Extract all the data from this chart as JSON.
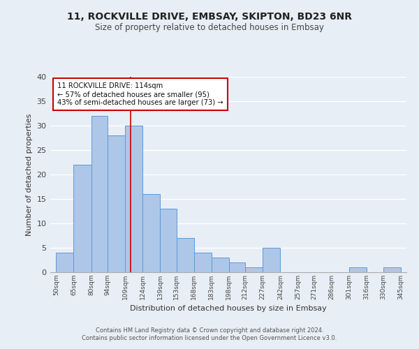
{
  "title": "11, ROCKVILLE DRIVE, EMBSAY, SKIPTON, BD23 6NR",
  "subtitle": "Size of property relative to detached houses in Embsay",
  "xlabel": "Distribution of detached houses by size in Embsay",
  "ylabel": "Number of detached properties",
  "bar_left_edges": [
    50,
    65,
    80,
    94,
    109,
    124,
    139,
    153,
    168,
    183,
    198,
    212,
    227,
    242,
    257,
    271,
    286,
    301,
    316,
    330
  ],
  "bar_widths": [
    15,
    15,
    14,
    15,
    15,
    15,
    14,
    15,
    15,
    15,
    14,
    15,
    15,
    15,
    14,
    15,
    15,
    15,
    14,
    15
  ],
  "bar_heights": [
    4,
    22,
    32,
    28,
    30,
    16,
    13,
    7,
    4,
    3,
    2,
    1,
    5,
    0,
    0,
    0,
    0,
    1,
    0,
    1
  ],
  "tick_labels": [
    "50sqm",
    "65sqm",
    "80sqm",
    "94sqm",
    "109sqm",
    "124sqm",
    "139sqm",
    "153sqm",
    "168sqm",
    "183sqm",
    "198sqm",
    "212sqm",
    "227sqm",
    "242sqm",
    "257sqm",
    "271sqm",
    "286sqm",
    "301sqm",
    "316sqm",
    "330sqm",
    "345sqm"
  ],
  "bar_color": "#aec6e8",
  "bar_edge_color": "#5b9bd5",
  "bg_color": "#e8eef5",
  "grid_color": "#ffffff",
  "vline_x": 114,
  "vline_color": "#cc0000",
  "annotation_line1": "11 ROCKVILLE DRIVE: 114sqm",
  "annotation_line2": "← 57% of detached houses are smaller (95)",
  "annotation_line3": "43% of semi-detached houses are larger (73) →",
  "annotation_box_color": "#cc0000",
  "ylim": [
    0,
    40
  ],
  "yticks": [
    0,
    5,
    10,
    15,
    20,
    25,
    30,
    35,
    40
  ],
  "footer_line1": "Contains HM Land Registry data © Crown copyright and database right 2024.",
  "footer_line2": "Contains public sector information licensed under the Open Government Licence v3.0."
}
